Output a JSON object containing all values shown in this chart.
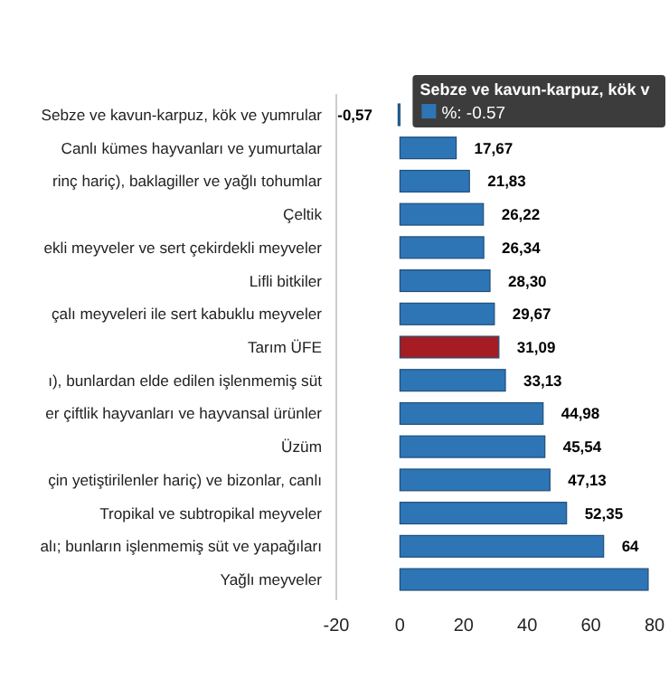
{
  "chart_data": {
    "type": "bar",
    "orientation": "horizontal",
    "categories": [
      "Sebze ve kavun-karpuz, kök ve yumrular",
      "Canlı kümes hayvanları ve yumurtalar",
      "rinç hariç), baklagiller ve yağlı tohumlar",
      "Çeltik",
      "ekli meyveler ve sert çekirdekli meyveler",
      "Lifli bitkiler",
      "çalı meyveleri ile sert kabuklu meyveler",
      "Tarım ÜFE",
      "ı), bunlardan elde edilen işlenmemiş süt",
      "er çiftlik hayvanları ve hayvansal ürünler",
      "Üzüm",
      "çin yetiştirilenler hariç) ve bizonlar, canlı",
      "Tropikal ve subtropikal meyveler",
      "alı; bunların işlenmemiş süt ve yapağıları",
      "Yağlı meyveler"
    ],
    "values": [
      -0.57,
      17.67,
      21.83,
      26.22,
      26.34,
      28.3,
      29.67,
      31.09,
      33.13,
      44.98,
      45.54,
      47.13,
      52.35,
      64,
      78
    ],
    "value_labels": [
      "-0,57",
      "17,67",
      "21,83",
      "26,22",
      "26,34",
      "28,30",
      "29,67",
      "31,09",
      "33,13",
      "44,98",
      "45,54",
      "47,13",
      "52,35",
      "64",
      null
    ],
    "colors": [
      "#2e75b6",
      "#2e75b6",
      "#2e75b6",
      "#2e75b6",
      "#2e75b6",
      "#2e75b6",
      "#2e75b6",
      "#a51d22",
      "#2e75b6",
      "#2e75b6",
      "#2e75b6",
      "#2e75b6",
      "#2e75b6",
      "#2e75b6",
      "#2e75b6"
    ],
    "xlim": [
      -20,
      80
    ],
    "xticks": [
      -20,
      0,
      20,
      40,
      60,
      80
    ],
    "annotations": [
      "Sebze ve kavun-karpuz, kök v",
      "%: -0.57"
    ]
  }
}
